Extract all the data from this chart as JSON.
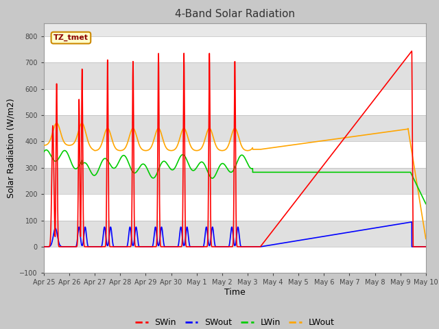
{
  "title": "4-Band Solar Radiation",
  "xlabel": "Time",
  "ylabel": "Solar Radiation (W/m2)",
  "ylim": [
    -100,
    850
  ],
  "xlim": [
    0,
    15
  ],
  "fig_bg_color": "#c8c8c8",
  "plot_bg_color": "#e8e8e8",
  "legend_label": "TZ_tmet",
  "tick_labels": [
    "Apr 25",
    "Apr 26",
    "Apr 27",
    "Apr 28",
    "Apr 29",
    "Apr 30",
    "May 1",
    "May 2",
    "May 3",
    "May 4",
    "May 5",
    "May 6",
    "May 7",
    "May 8",
    "May 9",
    "May 10"
  ],
  "series_colors": {
    "SWin": "#ff0000",
    "SWout": "#0000ff",
    "LWin": "#00cc00",
    "LWout": "#ffa500"
  },
  "band_colors": [
    "#e0e0e0",
    "#d0d0d0"
  ],
  "legend_entries": [
    "SWin",
    "SWout",
    "LWin",
    "LWout"
  ]
}
